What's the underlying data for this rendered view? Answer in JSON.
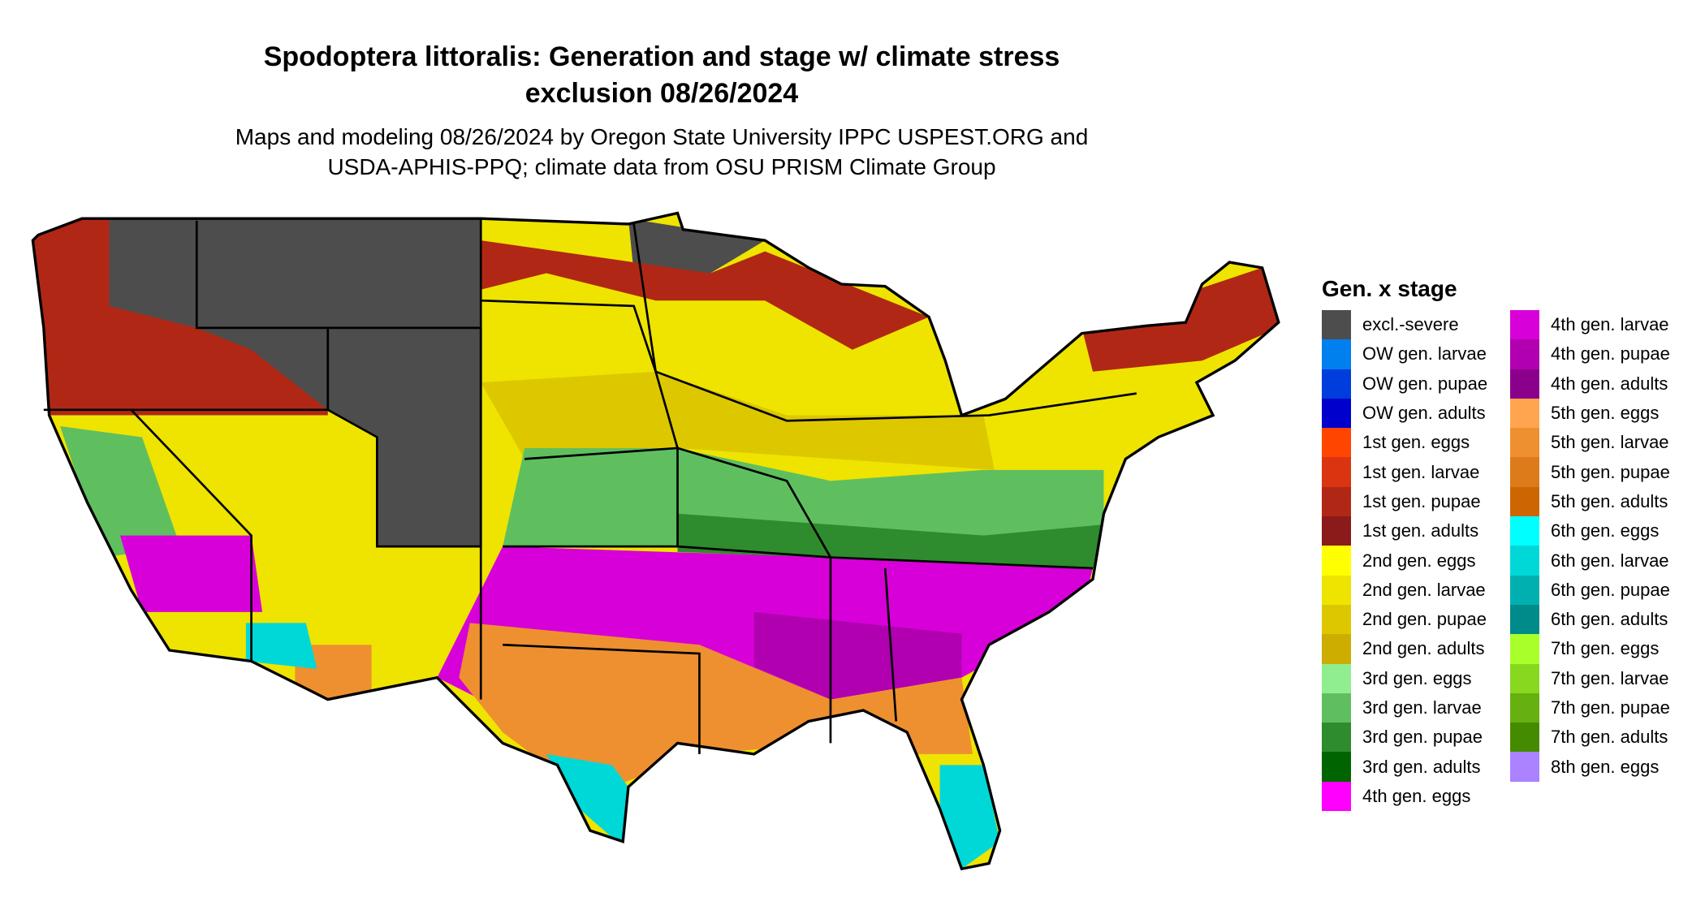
{
  "title": {
    "line1": "Spodoptera littoralis: Generation and stage w/ climate stress",
    "line2": "exclusion 08/26/2024"
  },
  "subtitle": {
    "line1": "Maps and modeling 08/26/2024 by Oregon State University IPPC USPEST.ORG and",
    "line2": "USDA-APHIS-PPQ; climate data from OSU PRISM Climate Group"
  },
  "legend": {
    "title": "Gen. x stage",
    "column1": [
      {
        "label": "excl.-severe",
        "color": "#4d4d4d"
      },
      {
        "label": "OW gen. larvae",
        "color": "#0080ee"
      },
      {
        "label": "OW gen. pupae",
        "color": "#003ddd"
      },
      {
        "label": "OW gen. adults",
        "color": "#0000cc"
      },
      {
        "label": "1st gen. eggs",
        "color": "#ff4500"
      },
      {
        "label": "1st gen. larvae",
        "color": "#da3510"
      },
      {
        "label": "1st gen. pupae",
        "color": "#b02815"
      },
      {
        "label": "1st gen. adults",
        "color": "#8b1a1a"
      },
      {
        "label": "2nd gen. eggs",
        "color": "#ffff00"
      },
      {
        "label": "2nd gen. larvae",
        "color": "#eee400"
      },
      {
        "label": "2nd gen. pupae",
        "color": "#ddc800"
      },
      {
        "label": "2nd gen. adults",
        "color": "#cdad00"
      },
      {
        "label": "3rd gen. eggs",
        "color": "#90ee90"
      },
      {
        "label": "3rd gen. larvae",
        "color": "#5fbf5f"
      },
      {
        "label": "3rd gen. pupae",
        "color": "#2e8b2e"
      },
      {
        "label": "3rd gen. adults",
        "color": "#006400"
      },
      {
        "label": "4th gen. eggs",
        "color": "#ff00ff"
      }
    ],
    "column2": [
      {
        "label": "4th gen. larvae",
        "color": "#d800d8"
      },
      {
        "label": "4th gen. pupae",
        "color": "#b000b0"
      },
      {
        "label": "4th gen. adults",
        "color": "#8b008b"
      },
      {
        "label": "5th gen. eggs",
        "color": "#ffa54f"
      },
      {
        "label": "5th gen. larvae",
        "color": "#ee9030"
      },
      {
        "label": "5th gen. pupae",
        "color": "#dd7a1a"
      },
      {
        "label": "5th gen. adults",
        "color": "#cd6600"
      },
      {
        "label": "6th gen. eggs",
        "color": "#00ffff"
      },
      {
        "label": "6th gen. larvae",
        "color": "#00d8d8"
      },
      {
        "label": "6th gen. pupae",
        "color": "#00b0b0"
      },
      {
        "label": "6th gen. adults",
        "color": "#008b8b"
      },
      {
        "label": "7th gen. eggs",
        "color": "#a8ff2a"
      },
      {
        "label": "7th gen. larvae",
        "color": "#88d820"
      },
      {
        "label": "7th gen. pupae",
        "color": "#66b010"
      },
      {
        "label": "7th gen. adults",
        "color": "#458b00"
      },
      {
        "label": "8th gen. eggs",
        "color": "#ab82ff"
      }
    ]
  }
}
